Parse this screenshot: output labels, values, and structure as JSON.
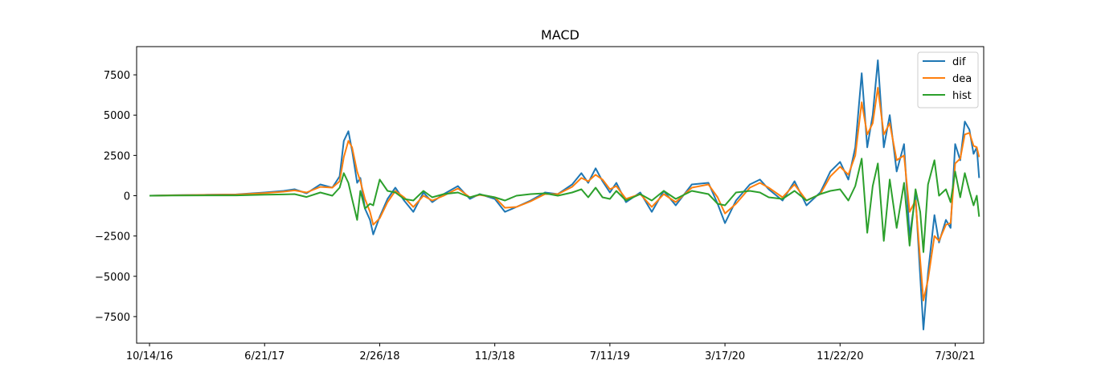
{
  "chart_data": {
    "type": "line",
    "title": "MACD",
    "xlabel": "",
    "ylabel": "",
    "x_ticks": [
      "10/14/16",
      "6/21/17",
      "2/26/18",
      "11/3/18",
      "7/11/19",
      "3/17/20",
      "11/22/20",
      "7/30/21"
    ],
    "x_domain": [
      "9/16/16",
      "9/30/21"
    ],
    "y_ticks": [
      7500,
      5000,
      2500,
      0,
      -2500,
      -5000,
      -7500
    ],
    "y_tick_labels": [
      "7500",
      "5000",
      "2500",
      "0",
      "−2500",
      "−5000",
      "−7500"
    ],
    "ylim": [
      -9150,
      9250
    ],
    "grid": false,
    "legend_position": "top-right",
    "series": [
      {
        "name": "dif",
        "color": "#1f77b4",
        "points": [
          [
            "10/14/16",
            0
          ],
          [
            "12/1/16",
            30
          ],
          [
            "2/15/17",
            60
          ],
          [
            "4/20/17",
            80
          ],
          [
            "6/21/17",
            200
          ],
          [
            "8/1/17",
            300
          ],
          [
            "8/25/17",
            400
          ],
          [
            "9/20/17",
            150
          ],
          [
            "10/20/17",
            700
          ],
          [
            "11/15/17",
            500
          ],
          [
            "12/1/17",
            1200
          ],
          [
            "12/10/17",
            3400
          ],
          [
            "12/20/17",
            4000
          ],
          [
            "12/28/17",
            2800
          ],
          [
            "1/8/18",
            800
          ],
          [
            "1/15/18",
            1100
          ],
          [
            "1/25/18",
            -800
          ],
          [
            "2/5/18",
            -1500
          ],
          [
            "2/12/18",
            -2400
          ],
          [
            "2/26/18",
            -1300
          ],
          [
            "3/15/18",
            -200
          ],
          [
            "4/1/18",
            500
          ],
          [
            "4/20/18",
            -300
          ],
          [
            "5/10/18",
            -1000
          ],
          [
            "6/1/18",
            200
          ],
          [
            "6/20/18",
            -400
          ],
          [
            "7/15/18",
            100
          ],
          [
            "8/15/18",
            600
          ],
          [
            "9/10/18",
            -200
          ],
          [
            "10/1/18",
            100
          ],
          [
            "11/3/18",
            -200
          ],
          [
            "11/25/18",
            -1000
          ],
          [
            "12/20/18",
            -700
          ],
          [
            "1/20/19",
            -300
          ],
          [
            "2/20/19",
            200
          ],
          [
            "3/20/19",
            100
          ],
          [
            "4/20/19",
            700
          ],
          [
            "5/10/19",
            1400
          ],
          [
            "5/25/19",
            800
          ],
          [
            "6/10/19",
            1700
          ],
          [
            "6/25/19",
            900
          ],
          [
            "7/11/19",
            200
          ],
          [
            "7/25/19",
            800
          ],
          [
            "8/15/19",
            -400
          ],
          [
            "9/15/19",
            200
          ],
          [
            "10/10/19",
            -1000
          ],
          [
            "11/5/19",
            300
          ],
          [
            "12/1/19",
            -600
          ],
          [
            "1/5/20",
            700
          ],
          [
            "2/10/20",
            800
          ],
          [
            "3/1/20",
            -500
          ],
          [
            "3/17/20",
            -1700
          ],
          [
            "4/10/20",
            -300
          ],
          [
            "5/10/20",
            700
          ],
          [
            "6/1/20",
            1000
          ],
          [
            "6/20/20",
            400
          ],
          [
            "7/20/20",
            -300
          ],
          [
            "8/15/20",
            900
          ],
          [
            "9/10/20",
            -600
          ],
          [
            "10/10/20",
            200
          ],
          [
            "11/1/20",
            1500
          ],
          [
            "11/22/20",
            2100
          ],
          [
            "12/10/20",
            1000
          ],
          [
            "12/25/20",
            3000
          ],
          [
            "1/8/21",
            7600
          ],
          [
            "1/20/21",
            3000
          ],
          [
            "2/1/21",
            5000
          ],
          [
            "2/12/21",
            8400
          ],
          [
            "2/25/21",
            3000
          ],
          [
            "3/10/21",
            5000
          ],
          [
            "3/25/21",
            1500
          ],
          [
            "4/10/21",
            3200
          ],
          [
            "4/22/21",
            -2500
          ],
          [
            "5/5/21",
            0
          ],
          [
            "5/15/21",
            -5000
          ],
          [
            "5/22/21",
            -8300
          ],
          [
            "6/1/21",
            -4800
          ],
          [
            "6/15/21",
            -1200
          ],
          [
            "6/25/21",
            -2900
          ],
          [
            "7/10/21",
            -1500
          ],
          [
            "7/20/21",
            -2000
          ],
          [
            "7/30/21",
            3200
          ],
          [
            "8/10/21",
            2200
          ],
          [
            "8/20/21",
            4600
          ],
          [
            "8/30/21",
            4100
          ],
          [
            "9/8/21",
            2600
          ],
          [
            "9/15/21",
            3000
          ],
          [
            "9/20/21",
            1100
          ]
        ]
      },
      {
        "name": "dea",
        "color": "#ff7f0e",
        "points": [
          [
            "10/14/16",
            0
          ],
          [
            "12/1/16",
            25
          ],
          [
            "2/15/17",
            50
          ],
          [
            "4/20/17",
            70
          ],
          [
            "6/21/17",
            160
          ],
          [
            "8/1/17",
            250
          ],
          [
            "8/25/17",
            330
          ],
          [
            "9/20/17",
            200
          ],
          [
            "10/20/17",
            550
          ],
          [
            "11/15/17",
            500
          ],
          [
            "12/1/17",
            900
          ],
          [
            "12/10/17",
            2400
          ],
          [
            "12/20/17",
            3400
          ],
          [
            "12/28/17",
            3000
          ],
          [
            "1/8/18",
            1500
          ],
          [
            "1/15/18",
            900
          ],
          [
            "1/25/18",
            -200
          ],
          [
            "2/5/18",
            -1000
          ],
          [
            "2/12/18",
            -1800
          ],
          [
            "2/26/18",
            -1400
          ],
          [
            "3/15/18",
            -400
          ],
          [
            "4/1/18",
            300
          ],
          [
            "4/20/18",
            -100
          ],
          [
            "5/10/18",
            -700
          ],
          [
            "6/1/18",
            0
          ],
          [
            "6/20/18",
            -300
          ],
          [
            "7/15/18",
            0
          ],
          [
            "8/15/18",
            450
          ],
          [
            "9/10/18",
            -100
          ],
          [
            "10/1/18",
            50
          ],
          [
            "11/3/18",
            -100
          ],
          [
            "11/25/18",
            -750
          ],
          [
            "12/20/18",
            -700
          ],
          [
            "1/20/19",
            -350
          ],
          [
            "2/20/19",
            100
          ],
          [
            "3/20/19",
            100
          ],
          [
            "4/20/19",
            550
          ],
          [
            "5/10/19",
            1100
          ],
          [
            "5/25/19",
            900
          ],
          [
            "6/10/19",
            1300
          ],
          [
            "6/25/19",
            1000
          ],
          [
            "7/11/19",
            400
          ],
          [
            "7/25/19",
            600
          ],
          [
            "8/15/19",
            -200
          ],
          [
            "9/15/19",
            100
          ],
          [
            "10/10/19",
            -700
          ],
          [
            "11/5/19",
            100
          ],
          [
            "12/1/19",
            -400
          ],
          [
            "1/5/20",
            500
          ],
          [
            "2/10/20",
            700
          ],
          [
            "3/1/20",
            -100
          ],
          [
            "3/17/20",
            -1100
          ],
          [
            "4/10/20",
            -500
          ],
          [
            "5/10/20",
            500
          ],
          [
            "6/1/20",
            800
          ],
          [
            "6/20/20",
            500
          ],
          [
            "7/20/20",
            -100
          ],
          [
            "8/15/20",
            700
          ],
          [
            "9/10/20",
            -300
          ],
          [
            "10/10/20",
            100
          ],
          [
            "11/1/20",
            1200
          ],
          [
            "11/22/20",
            1800
          ],
          [
            "12/10/20",
            1300
          ],
          [
            "12/25/20",
            2500
          ],
          [
            "1/8/21",
            5800
          ],
          [
            "1/20/21",
            3800
          ],
          [
            "2/1/21",
            4500
          ],
          [
            "2/12/21",
            6700
          ],
          [
            "2/25/21",
            3800
          ],
          [
            "3/10/21",
            4500
          ],
          [
            "3/25/21",
            2200
          ],
          [
            "4/10/21",
            2500
          ],
          [
            "4/22/21",
            -1000
          ],
          [
            "5/5/21",
            -300
          ],
          [
            "5/15/21",
            -4000
          ],
          [
            "5/22/21",
            -6500
          ],
          [
            "6/1/21",
            -5200
          ],
          [
            "6/15/21",
            -2500
          ],
          [
            "6/25/21",
            -2800
          ],
          [
            "7/10/21",
            -1800
          ],
          [
            "7/20/21",
            -1700
          ],
          [
            "7/30/21",
            2000
          ],
          [
            "8/10/21",
            2300
          ],
          [
            "8/20/21",
            3800
          ],
          [
            "8/30/21",
            3900
          ],
          [
            "9/8/21",
            3100
          ],
          [
            "9/15/21",
            3000
          ],
          [
            "9/20/21",
            2400
          ]
        ]
      },
      {
        "name": "hist",
        "color": "#2ca02c",
        "points": [
          [
            "10/14/16",
            0
          ],
          [
            "12/1/16",
            10
          ],
          [
            "2/15/17",
            20
          ],
          [
            "4/20/17",
            20
          ],
          [
            "6/21/17",
            60
          ],
          [
            "8/1/17",
            80
          ],
          [
            "8/25/17",
            100
          ],
          [
            "9/20/17",
            -80
          ],
          [
            "10/20/17",
            200
          ],
          [
            "11/15/17",
            0
          ],
          [
            "12/1/17",
            500
          ],
          [
            "12/10/17",
            1400
          ],
          [
            "12/20/17",
            800
          ],
          [
            "12/28/17",
            -200
          ],
          [
            "1/8/18",
            -1500
          ],
          [
            "1/15/18",
            300
          ],
          [
            "1/25/18",
            -800
          ],
          [
            "2/5/18",
            -500
          ],
          [
            "2/12/18",
            -600
          ],
          [
            "2/26/18",
            1000
          ],
          [
            "3/15/18",
            300
          ],
          [
            "4/1/18",
            200
          ],
          [
            "4/20/18",
            -200
          ],
          [
            "5/10/18",
            -300
          ],
          [
            "6/1/18",
            300
          ],
          [
            "6/20/18",
            -100
          ],
          [
            "7/15/18",
            100
          ],
          [
            "8/15/18",
            200
          ],
          [
            "9/10/18",
            -100
          ],
          [
            "10/1/18",
            80
          ],
          [
            "11/3/18",
            -100
          ],
          [
            "11/25/18",
            -300
          ],
          [
            "12/20/18",
            0
          ],
          [
            "1/20/19",
            100
          ],
          [
            "2/20/19",
            150
          ],
          [
            "3/20/19",
            0
          ],
          [
            "4/20/19",
            200
          ],
          [
            "5/10/19",
            400
          ],
          [
            "5/25/19",
            -100
          ],
          [
            "6/10/19",
            500
          ],
          [
            "6/25/19",
            -100
          ],
          [
            "7/11/19",
            -200
          ],
          [
            "7/25/19",
            300
          ],
          [
            "8/15/19",
            -300
          ],
          [
            "9/15/19",
            100
          ],
          [
            "10/10/19",
            -300
          ],
          [
            "11/5/19",
            300
          ],
          [
            "12/1/19",
            -200
          ],
          [
            "1/5/20",
            300
          ],
          [
            "2/10/20",
            100
          ],
          [
            "3/1/20",
            -500
          ],
          [
            "3/17/20",
            -600
          ],
          [
            "4/10/20",
            200
          ],
          [
            "5/10/20",
            300
          ],
          [
            "6/1/20",
            200
          ],
          [
            "6/20/20",
            -100
          ],
          [
            "7/20/20",
            -200
          ],
          [
            "8/15/20",
            300
          ],
          [
            "9/10/20",
            -300
          ],
          [
            "10/10/20",
            100
          ],
          [
            "11/1/20",
            300
          ],
          [
            "11/22/20",
            400
          ],
          [
            "12/10/20",
            -300
          ],
          [
            "12/25/20",
            600
          ],
          [
            "1/8/21",
            2300
          ],
          [
            "1/20/21",
            -2300
          ],
          [
            "2/1/21",
            600
          ],
          [
            "2/12/21",
            2000
          ],
          [
            "2/25/21",
            -2800
          ],
          [
            "3/10/21",
            1000
          ],
          [
            "3/25/21",
            -2000
          ],
          [
            "4/10/21",
            800
          ],
          [
            "4/22/21",
            -3100
          ],
          [
            "5/5/21",
            400
          ],
          [
            "5/15/21",
            -1000
          ],
          [
            "5/22/21",
            -3500
          ],
          [
            "6/1/21",
            700
          ],
          [
            "6/15/21",
            2200
          ],
          [
            "6/25/21",
            0
          ],
          [
            "7/10/21",
            400
          ],
          [
            "7/20/21",
            -400
          ],
          [
            "7/30/21",
            1500
          ],
          [
            "8/10/21",
            -100
          ],
          [
            "8/20/21",
            1400
          ],
          [
            "8/30/21",
            300
          ],
          [
            "9/8/21",
            -600
          ],
          [
            "9/15/21",
            0
          ],
          [
            "9/20/21",
            -1300
          ]
        ]
      }
    ]
  }
}
